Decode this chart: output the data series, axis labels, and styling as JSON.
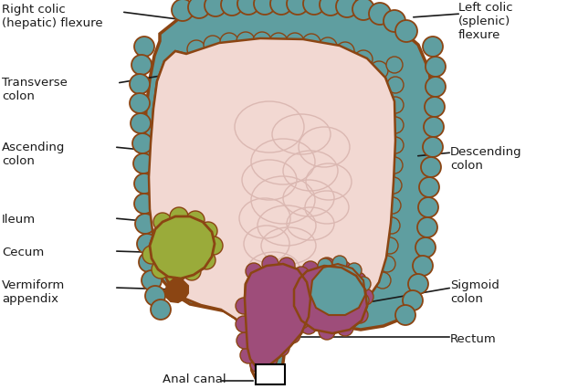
{
  "bg_color": "#ffffff",
  "colon_fill": "#5f9ea0",
  "colon_outline": "#8b4513",
  "inner_fill": "#f2d8d2",
  "cecum_fill": "#9aab3a",
  "rectum_fill": "#9e4d7a",
  "sigmoid_fill": "#9e4d7a",
  "appendix_fill": "#8b4513",
  "label_color": "#1a1a1a",
  "line_color": "#1a1a1a",
  "font_size": 9.5,
  "labels": {
    "right_colic": "Right colic\n(hepatic) flexure",
    "left_colic": "Left colic\n(splenic)\nflexure",
    "transverse": "Transverse\ncolon",
    "ascending": "Ascending\ncolon",
    "descending": "Descending\ncolon",
    "ileum": "Ileum",
    "cecum": "Cecum",
    "vermiform": "Vermiform\nappendix",
    "anal_canal": "Anal canal",
    "sigmoid": "Sigmoid\ncolon",
    "rectum": "Rectum"
  }
}
